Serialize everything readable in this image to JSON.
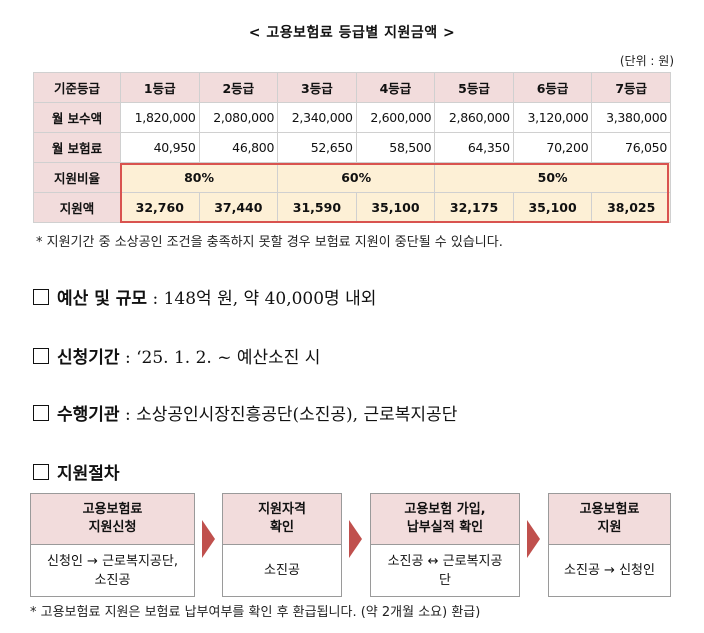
{
  "title": "< 고용보험료 등급별 지원금액 >",
  "unit": "(단위 : 원)",
  "table": {
    "headers": [
      "기준등급",
      "1등급",
      "2등급",
      "3등급",
      "4등급",
      "5등급",
      "6등급",
      "7등급"
    ],
    "rows": [
      {
        "label": "월 보수액",
        "values": [
          "1,820,000",
          "2,080,000",
          "2,340,000",
          "2,600,000",
          "2,860,000",
          "3,120,000",
          "3,380,000"
        ]
      },
      {
        "label": "월 보험료",
        "values": [
          "40,950",
          "46,800",
          "52,650",
          "58,500",
          "64,350",
          "70,200",
          "76,050"
        ]
      }
    ],
    "rate_label": "지원비율",
    "rates": [
      "80%",
      "60%",
      "50%"
    ],
    "amount_label": "지원액",
    "amounts": [
      "32,760",
      "37,440",
      "31,590",
      "35,100",
      "32,175",
      "35,100",
      "38,025"
    ]
  },
  "note1": "* 지원기간 중 소상공인 조건을 충족하지 못할 경우 보험료 지원이 중단될 수 있습니다.",
  "sections": [
    {
      "label": "예산 및 규모",
      "text": " : 148억 원, 약 40,000명 내외"
    },
    {
      "label": "신청기간",
      "text": " :  ‘25. 1. 2. ~ 예산소진 시"
    },
    {
      "label": "수행기관",
      "text": " : 소상공인시장진흥공단(소진공), 근로복지공단"
    },
    {
      "label": "지원절차",
      "text": ""
    }
  ],
  "process": [
    {
      "title": "고용보험료\n지원신청",
      "body": "신청인 → 근로복지공단,\n소진공"
    },
    {
      "title": "지원자격\n확인",
      "body": "소진공"
    },
    {
      "title": "고용보험 가입,\n납부실적 확인",
      "body": "소진공 ↔ 근로복지공\n단"
    },
    {
      "title": "고용보험료\n지원",
      "body": "소진공 → 신청인"
    }
  ],
  "note2": "* 고용보험료 지원은 보험료 납부여부를 확인 후 환급됩니다. (약 2개월 소요) 환급)"
}
